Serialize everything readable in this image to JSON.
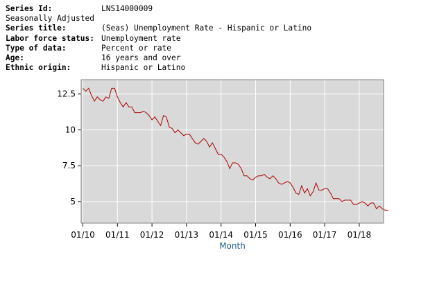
{
  "metadata": {
    "rows": [
      {
        "label": "Series Id:",
        "value": "LNS14000009"
      },
      {
        "label": "",
        "value": "Seasonally Adjusted"
      },
      {
        "label": "Series title:",
        "value": "(Seas) Unemployment Rate - Hispanic or Latino"
      },
      {
        "label": "Labor force status:",
        "value": "Unemployment rate"
      },
      {
        "label": "Type of data:",
        "value": "Percent or rate"
      },
      {
        "label": "Age:",
        "value": "16 years and over"
      },
      {
        "label": "Ethnic origin:",
        "value": "Hispanic or Latino"
      }
    ]
  },
  "chart_data": {
    "type": "line",
    "xlabel": "Month",
    "ylabel": "",
    "ylim": [
      3.5,
      13.5
    ],
    "yticks": [
      5,
      7.5,
      10,
      12.5
    ],
    "ytick_labels": [
      "5",
      "7.5",
      "10",
      "12.5"
    ],
    "xticks": [
      "01/10",
      "01/11",
      "01/12",
      "01/13",
      "01/14",
      "01/15",
      "01/16",
      "01/17",
      "01/18"
    ],
    "x_start": "2010-01",
    "grid": true,
    "line_color": "#aa0000",
    "plot_background": "#d9d9d9",
    "series": [
      {
        "values": [
          12.9,
          12.7,
          12.9,
          12.4,
          12.0,
          12.3,
          12.1,
          12.0,
          12.3,
          12.2,
          12.9,
          12.9,
          12.3,
          11.9,
          11.6,
          11.9,
          11.6,
          11.6,
          11.2,
          11.2,
          11.2,
          11.3,
          11.2,
          11.0,
          10.7,
          10.9,
          10.6,
          10.3,
          11.0,
          10.9,
          10.2,
          10.1,
          9.8,
          10.0,
          9.8,
          9.6,
          9.7,
          9.7,
          9.4,
          9.1,
          9.0,
          9.2,
          9.4,
          9.2,
          8.8,
          9.1,
          8.7,
          8.3,
          8.3,
          8.1,
          7.8,
          7.3,
          7.7,
          7.7,
          7.6,
          7.3,
          6.8,
          6.8,
          6.6,
          6.5,
          6.7,
          6.8,
          6.8,
          6.9,
          6.7,
          6.6,
          6.8,
          6.6,
          6.3,
          6.2,
          6.3,
          6.4,
          6.3,
          6.0,
          5.6,
          5.5,
          6.1,
          5.6,
          5.9,
          5.4,
          5.7,
          6.3,
          5.8,
          5.8,
          5.9,
          5.9,
          5.6,
          5.2,
          5.2,
          5.2,
          5.0,
          5.1,
          5.1,
          5.1,
          4.8,
          4.8,
          4.9,
          5.0,
          4.9,
          4.7,
          4.9,
          4.9,
          4.5,
          4.7,
          4.5,
          4.4,
          4.4
        ]
      }
    ]
  }
}
